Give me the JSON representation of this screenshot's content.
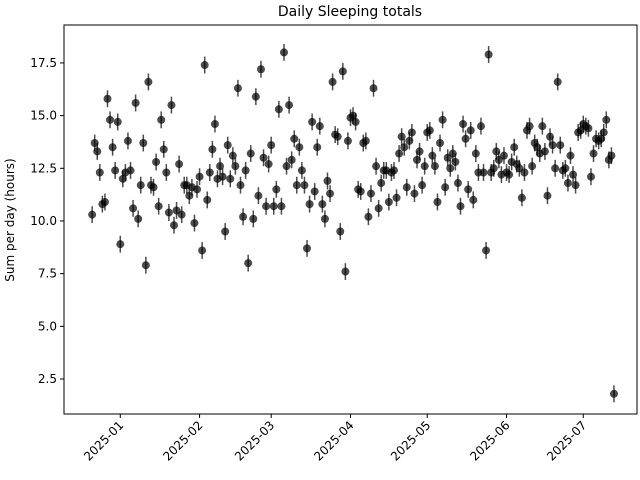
{
  "chart_data": {
    "type": "scatter",
    "title": "Daily Sleeping totals",
    "y_label": "Sum per day (hours)",
    "xlim": [
      "2024-12-10",
      "2025-07-22"
    ],
    "xticks": [
      {
        "value": "2025-01-01",
        "label": "2025-01"
      },
      {
        "value": "2025-02-01",
        "label": "2025-02"
      },
      {
        "value": "2025-03-01",
        "label": "2025-03"
      },
      {
        "value": "2025-04-01",
        "label": "2025-04"
      },
      {
        "value": "2025-05-01",
        "label": "2025-05"
      },
      {
        "value": "2025-06-01",
        "label": "2025-06"
      },
      {
        "value": "2025-07-01",
        "label": "2025-07"
      }
    ],
    "ylim": [
      0.84,
      19.3
    ],
    "yticks": [
      2.5,
      {
        "value": 5,
        "label": "5.0"
      },
      7.5,
      {
        "value": 10,
        "label": "10.0"
      },
      12.5,
      {
        "value": 15,
        "label": "15.0"
      },
      17.5
    ],
    "x": [
      "2024-12-21",
      "2024-12-22",
      "2024-12-23",
      "2024-12-24",
      "2024-12-25",
      "2024-12-26",
      "2024-12-27",
      "2024-12-28",
      "2024-12-29",
      "2024-12-30",
      "2024-12-31",
      "2025-01-01",
      "2025-01-02",
      "2025-01-03",
      "2025-01-04",
      "2025-01-05",
      "2025-01-06",
      "2025-01-07",
      "2025-01-08",
      "2025-01-09",
      "2025-01-10",
      "2025-01-11",
      "2025-01-12",
      "2025-01-13",
      "2025-01-14",
      "2025-01-15",
      "2025-01-16",
      "2025-01-17",
      "2025-01-18",
      "2025-01-19",
      "2025-01-20",
      "2025-01-21",
      "2025-01-22",
      "2025-01-23",
      "2025-01-24",
      "2025-01-25",
      "2025-01-26",
      "2025-01-27",
      "2025-01-28",
      "2025-01-29",
      "2025-01-30",
      "2025-01-31",
      "2025-02-01",
      "2025-02-02",
      "2025-02-03",
      "2025-02-04",
      "2025-02-05",
      "2025-02-06",
      "2025-02-07",
      "2025-02-08",
      "2025-02-09",
      "2025-02-10",
      "2025-02-11",
      "2025-02-12",
      "2025-02-13",
      "2025-02-14",
      "2025-02-15",
      "2025-02-16",
      "2025-02-17",
      "2025-02-18",
      "2025-02-19",
      "2025-02-20",
      "2025-02-21",
      "2025-02-22",
      "2025-02-23",
      "2025-02-24",
      "2025-02-25",
      "2025-02-26",
      "2025-02-27",
      "2025-02-28",
      "2025-03-01",
      "2025-03-02",
      "2025-03-03",
      "2025-03-04",
      "2025-03-05",
      "2025-03-06",
      "2025-03-07",
      "2025-03-08",
      "2025-03-09",
      "2025-03-10",
      "2025-03-11",
      "2025-03-12",
      "2025-03-13",
      "2025-03-14",
      "2025-03-15",
      "2025-03-16",
      "2025-03-17",
      "2025-03-18",
      "2025-03-19",
      "2025-03-20",
      "2025-03-21",
      "2025-03-22",
      "2025-03-23",
      "2025-03-24",
      "2025-03-25",
      "2025-03-26",
      "2025-03-27",
      "2025-03-28",
      "2025-03-29",
      "2025-03-30",
      "2025-03-31",
      "2025-04-01",
      "2025-04-02",
      "2025-04-03",
      "2025-04-04",
      "2025-04-05",
      "2025-04-06",
      "2025-04-07",
      "2025-04-08",
      "2025-04-09",
      "2025-04-10",
      "2025-04-11",
      "2025-04-12",
      "2025-04-13",
      "2025-04-14",
      "2025-04-15",
      "2025-04-16",
      "2025-04-17",
      "2025-04-18",
      "2025-04-19",
      "2025-04-20",
      "2025-04-21",
      "2025-04-22",
      "2025-04-23",
      "2025-04-24",
      "2025-04-25",
      "2025-04-26",
      "2025-04-27",
      "2025-04-28",
      "2025-04-29",
      "2025-04-30",
      "2025-05-01",
      "2025-05-02",
      "2025-05-03",
      "2025-05-04",
      "2025-05-05",
      "2025-05-06",
      "2025-05-07",
      "2025-05-08",
      "2025-05-09",
      "2025-05-10",
      "2025-05-11",
      "2025-05-12",
      "2025-05-13",
      "2025-05-14",
      "2025-05-15",
      "2025-05-16",
      "2025-05-17",
      "2025-05-18",
      "2025-05-19",
      "2025-05-20",
      "2025-05-21",
      "2025-05-22",
      "2025-05-23",
      "2025-05-24",
      "2025-05-25",
      "2025-05-26",
      "2025-05-27",
      "2025-05-28",
      "2025-05-29",
      "2025-05-30",
      "2025-05-31",
      "2025-06-01",
      "2025-06-02",
      "2025-06-03",
      "2025-06-04",
      "2025-06-05",
      "2025-06-06",
      "2025-06-07",
      "2025-06-08",
      "2025-06-09",
      "2025-06-10",
      "2025-06-11",
      "2025-06-12",
      "2025-06-13",
      "2025-06-14",
      "2025-06-15",
      "2025-06-16",
      "2025-06-17",
      "2025-06-18",
      "2025-06-19",
      "2025-06-20",
      "2025-06-21",
      "2025-06-22",
      "2025-06-23",
      "2025-06-24",
      "2025-06-25",
      "2025-06-26",
      "2025-06-27",
      "2025-06-28",
      "2025-06-29",
      "2025-06-30",
      "2025-07-01",
      "2025-07-02",
      "2025-07-03",
      "2025-07-04",
      "2025-07-05",
      "2025-07-06",
      "2025-07-07",
      "2025-07-08",
      "2025-07-09",
      "2025-07-10",
      "2025-07-11",
      "2025-07-12",
      "2025-07-13"
    ],
    "series": [
      {
        "color": "#000000",
        "alpha": 0.7,
        "yerr": 0.4,
        "values": [
          10.3,
          13.7,
          13.3,
          12.3,
          10.8,
          10.9,
          15.8,
          14.8,
          13.5,
          12.4,
          14.7,
          8.9,
          12.0,
          12.3,
          13.8,
          12.4,
          10.6,
          15.6,
          10.1,
          11.7,
          13.7,
          7.9,
          16.6,
          11.7,
          11.6,
          12.8,
          10.7,
          14.8,
          13.4,
          12.3,
          10.4,
          15.5,
          9.8,
          10.5,
          12.7,
          10.3,
          11.7,
          11.7,
          11.2,
          11.6,
          9.9,
          11.5,
          12.1,
          8.6,
          17.4,
          11.0,
          12.3,
          13.4,
          14.6,
          12.0,
          12.6,
          12.1,
          9.5,
          13.6,
          12.0,
          13.1,
          12.6,
          16.3,
          11.7,
          10.2,
          12.4,
          8.0,
          13.2,
          10.1,
          15.9,
          11.2,
          17.2,
          13.0,
          10.7,
          12.7,
          13.6,
          10.7,
          11.5,
          15.3,
          10.7,
          18.0,
          12.6,
          15.5,
          12.9,
          13.9,
          11.7,
          13.5,
          12.4,
          11.7,
          8.7,
          10.8,
          14.7,
          11.4,
          13.5,
          14.5,
          10.8,
          10.1,
          11.9,
          11.3,
          16.6,
          14.1,
          14.0,
          9.5,
          17.1,
          7.6,
          13.8,
          14.9,
          15.0,
          14.7,
          11.5,
          11.4,
          13.7,
          13.8,
          10.2,
          11.3,
          16.3,
          12.6,
          10.6,
          11.8,
          12.4,
          12.4,
          10.9,
          12.3,
          12.4,
          11.1,
          13.2,
          14.0,
          13.5,
          11.6,
          13.8,
          14.2,
          11.3,
          12.9,
          13.3,
          11.7,
          12.6,
          14.2,
          14.3,
          13.1,
          12.6,
          10.9,
          13.7,
          14.8,
          11.6,
          13.0,
          12.5,
          13.2,
          12.8,
          11.8,
          10.7,
          14.6,
          13.9,
          11.5,
          14.3,
          11.0,
          13.2,
          12.3,
          14.5,
          12.3,
          8.6,
          17.9,
          12.3,
          12.5,
          13.3,
          12.9,
          12.2,
          13.1,
          12.3,
          12.2,
          12.8,
          13.5,
          12.7,
          12.5,
          11.1,
          12.3,
          14.3,
          14.5,
          12.6,
          13.7,
          13.5,
          13.2,
          14.5,
          13.3,
          11.2,
          14.0,
          13.6,
          12.5,
          16.6,
          13.6,
          12.4,
          12.5,
          11.8,
          13.1,
          12.2,
          11.7,
          14.2,
          14.3,
          14.6,
          14.5,
          14.4,
          12.1,
          13.2,
          13.9,
          13.8,
          13.9,
          14.2,
          14.8,
          12.9,
          13.1,
          1.8
        ]
      }
    ]
  }
}
